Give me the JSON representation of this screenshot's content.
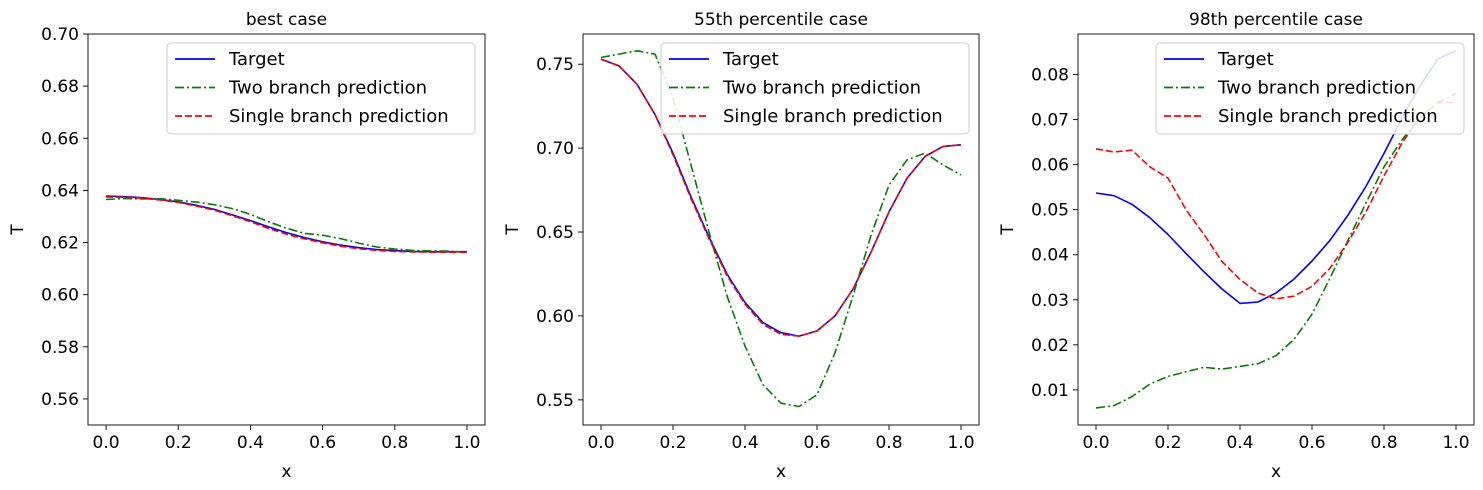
{
  "chart_data": [
    {
      "type": "line",
      "title": "best case",
      "xlabel": "x",
      "ylabel": "T",
      "xlim": [
        -0.05,
        1.05
      ],
      "ylim": [
        0.55,
        0.7
      ],
      "xticks": [
        0.0,
        0.2,
        0.4,
        0.6,
        0.8,
        1.0
      ],
      "xtick_labels": [
        "0.0",
        "0.2",
        "0.4",
        "0.6",
        "0.8",
        "1.0"
      ],
      "yticks": [
        0.56,
        0.58,
        0.6,
        0.62,
        0.64,
        0.66,
        0.68,
        0.7
      ],
      "ytick_labels": [
        "0.56",
        "0.58",
        "0.60",
        "0.62",
        "0.64",
        "0.66",
        "0.68",
        "0.70"
      ],
      "legend_position": "top-right",
      "grid": false,
      "x": [
        0,
        0.05,
        0.1,
        0.15,
        0.2,
        0.25,
        0.3,
        0.35,
        0.4,
        0.45,
        0.5,
        0.55,
        0.6,
        0.65,
        0.7,
        0.75,
        0.8,
        0.85,
        0.9,
        0.95,
        1.0
      ],
      "series": [
        {
          "name": "Target",
          "color": "#0000ff",
          "style": "solid",
          "values": [
            0.6378,
            0.6376,
            0.6372,
            0.6365,
            0.6356,
            0.6343,
            0.6327,
            0.6306,
            0.6284,
            0.626,
            0.6238,
            0.6219,
            0.6203,
            0.619,
            0.618,
            0.6173,
            0.6169,
            0.6166,
            0.6165,
            0.6165,
            0.6165
          ]
        },
        {
          "name": "Two branch prediction",
          "color": "#008000",
          "style": "dashdot",
          "values": [
            0.6365,
            0.6369,
            0.6367,
            0.6368,
            0.6362,
            0.6355,
            0.6345,
            0.633,
            0.6308,
            0.628,
            0.6255,
            0.6235,
            0.6228,
            0.6215,
            0.6198,
            0.6183,
            0.6175,
            0.617,
            0.6168,
            0.6167,
            0.6162
          ]
        },
        {
          "name": "Single branch prediction",
          "color": "#ff0000",
          "style": "dashed",
          "values": [
            0.6375,
            0.6374,
            0.637,
            0.6363,
            0.6354,
            0.634,
            0.6324,
            0.6303,
            0.628,
            0.6254,
            0.6232,
            0.6214,
            0.6199,
            0.6186,
            0.6176,
            0.617,
            0.6166,
            0.6164,
            0.6163,
            0.6163,
            0.6163
          ]
        }
      ]
    },
    {
      "type": "line",
      "title": "55th percentile case",
      "xlabel": "x",
      "ylabel": "T",
      "xlim": [
        -0.05,
        1.05
      ],
      "ylim": [
        0.535,
        0.768
      ],
      "xticks": [
        0.0,
        0.2,
        0.4,
        0.6,
        0.8,
        1.0
      ],
      "xtick_labels": [
        "0.0",
        "0.2",
        "0.4",
        "0.6",
        "0.8",
        "1.0"
      ],
      "yticks": [
        0.55,
        0.6,
        0.65,
        0.7,
        0.75
      ],
      "ytick_labels": [
        "0.55",
        "0.60",
        "0.65",
        "0.70",
        "0.75"
      ],
      "legend_position": "top-right",
      "grid": false,
      "x": [
        0,
        0.05,
        0.1,
        0.15,
        0.2,
        0.25,
        0.3,
        0.35,
        0.4,
        0.45,
        0.5,
        0.55,
        0.6,
        0.65,
        0.7,
        0.75,
        0.8,
        0.85,
        0.9,
        0.95,
        1.0
      ],
      "series": [
        {
          "name": "Target",
          "color": "#0000ff",
          "style": "solid",
          "values": [
            0.753,
            0.749,
            0.738,
            0.72,
            0.697,
            0.671,
            0.647,
            0.625,
            0.608,
            0.596,
            0.59,
            0.588,
            0.591,
            0.6,
            0.616,
            0.638,
            0.662,
            0.682,
            0.695,
            0.701,
            0.702
          ]
        },
        {
          "name": "Two branch prediction",
          "color": "#008000",
          "style": "dashdot",
          "values": [
            0.754,
            0.756,
            0.758,
            0.756,
            0.73,
            0.69,
            0.65,
            0.612,
            0.582,
            0.559,
            0.548,
            0.546,
            0.553,
            0.578,
            0.612,
            0.648,
            0.678,
            0.693,
            0.697,
            0.69,
            0.684
          ]
        },
        {
          "name": "Single branch prediction",
          "color": "#ff0000",
          "style": "dashed",
          "values": [
            0.753,
            0.749,
            0.738,
            0.72,
            0.696,
            0.67,
            0.646,
            0.624,
            0.607,
            0.595,
            0.589,
            0.588,
            0.591,
            0.6,
            0.616,
            0.638,
            0.662,
            0.682,
            0.695,
            0.701,
            0.702
          ]
        }
      ]
    },
    {
      "type": "line",
      "title": "98th percentile case",
      "xlabel": "x",
      "ylabel": "T",
      "xlim": [
        -0.05,
        1.05
      ],
      "ylim": [
        0.0022,
        0.089
      ],
      "xticks": [
        0.0,
        0.2,
        0.4,
        0.6,
        0.8,
        1.0
      ],
      "xtick_labels": [
        "0.0",
        "0.2",
        "0.4",
        "0.6",
        "0.8",
        "1.0"
      ],
      "yticks": [
        0.01,
        0.02,
        0.03,
        0.04,
        0.05,
        0.06,
        0.07,
        0.08
      ],
      "ytick_labels": [
        "0.01",
        "0.02",
        "0.03",
        "0.04",
        "0.05",
        "0.06",
        "0.07",
        "0.08"
      ],
      "legend_position": "top-right",
      "grid": false,
      "x": [
        0,
        0.05,
        0.1,
        0.15,
        0.2,
        0.25,
        0.3,
        0.35,
        0.4,
        0.45,
        0.5,
        0.55,
        0.6,
        0.65,
        0.7,
        0.75,
        0.8,
        0.85,
        0.9,
        0.95,
        1.0
      ],
      "series": [
        {
          "name": "Target",
          "color": "#0000ff",
          "style": "solid",
          "values": [
            0.0537,
            0.0531,
            0.0512,
            0.0482,
            0.0445,
            0.0403,
            0.0362,
            0.0324,
            0.0292,
            0.0295,
            0.0315,
            0.0346,
            0.0386,
            0.0432,
            0.0488,
            0.0552,
            0.0625,
            0.0703,
            0.0775,
            0.0835,
            0.0853
          ]
        },
        {
          "name": "Two branch prediction",
          "color": "#008000",
          "style": "dashdot",
          "values": [
            0.006,
            0.0065,
            0.0085,
            0.0113,
            0.013,
            0.014,
            0.015,
            0.0146,
            0.0152,
            0.0158,
            0.0176,
            0.0212,
            0.0268,
            0.0348,
            0.0432,
            0.0515,
            0.0595,
            0.0655,
            0.0705,
            0.0738,
            0.0758
          ]
        },
        {
          "name": "Single branch prediction",
          "color": "#ff0000",
          "style": "dashed",
          "values": [
            0.0635,
            0.0628,
            0.0632,
            0.0595,
            0.057,
            0.05,
            0.0445,
            0.0385,
            0.0345,
            0.0315,
            0.0302,
            0.0308,
            0.033,
            0.037,
            0.0428,
            0.0495,
            0.0575,
            0.0648,
            0.0705,
            0.0738,
            0.0738
          ]
        }
      ]
    }
  ]
}
